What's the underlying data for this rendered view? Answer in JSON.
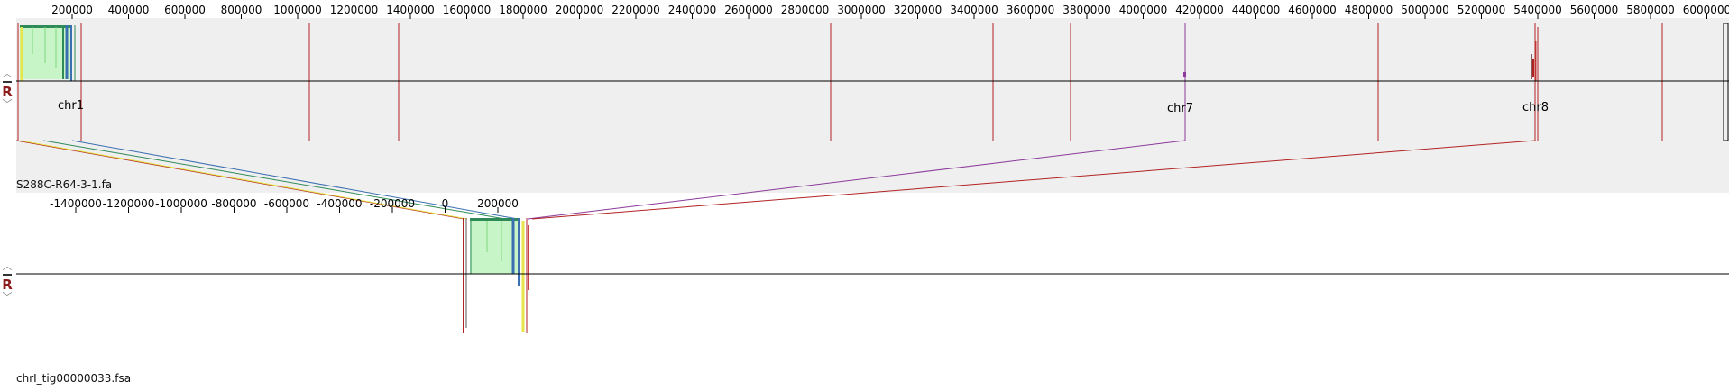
{
  "colors": {
    "panel_background": "#efefef",
    "feature_line": "#b22222",
    "axis": "#000000",
    "match_green": "#2e8b57",
    "match_fill": "#c8f5c8",
    "match_blue": "#3a6fb0",
    "match_purple": "#8b3a9a",
    "match_yellow": "#e6e64a"
  },
  "top_genome": {
    "file_name": "S288C-R64-3-1.fa",
    "ruler_ticks": [
      "200000",
      "400000",
      "600000",
      "800000",
      "1000000",
      "1200000",
      "1400000",
      "1600000",
      "1800000",
      "2000000",
      "2200000",
      "2400000",
      "2600000",
      "2800000",
      "3000000",
      "3200000",
      "3400000",
      "3600000",
      "3800000",
      "4000000",
      "4200000",
      "4400000",
      "4600000",
      "4800000",
      "5000000",
      "5200000",
      "5400000",
      "5600000",
      "5800000",
      "6000000"
    ],
    "chromosome_labels": [
      "chr1",
      "chr7",
      "chr8"
    ],
    "controls": {
      "reverse_label": "R"
    }
  },
  "bottom_genome": {
    "file_name": "chrI_tig00000033.fsa",
    "ruler_ticks": [
      "-1400000",
      "-1200000",
      "-1000000",
      "-800000",
      "-600000",
      "-400000",
      "-200000",
      "0",
      "200000"
    ],
    "controls": {
      "reverse_label": "R"
    }
  }
}
